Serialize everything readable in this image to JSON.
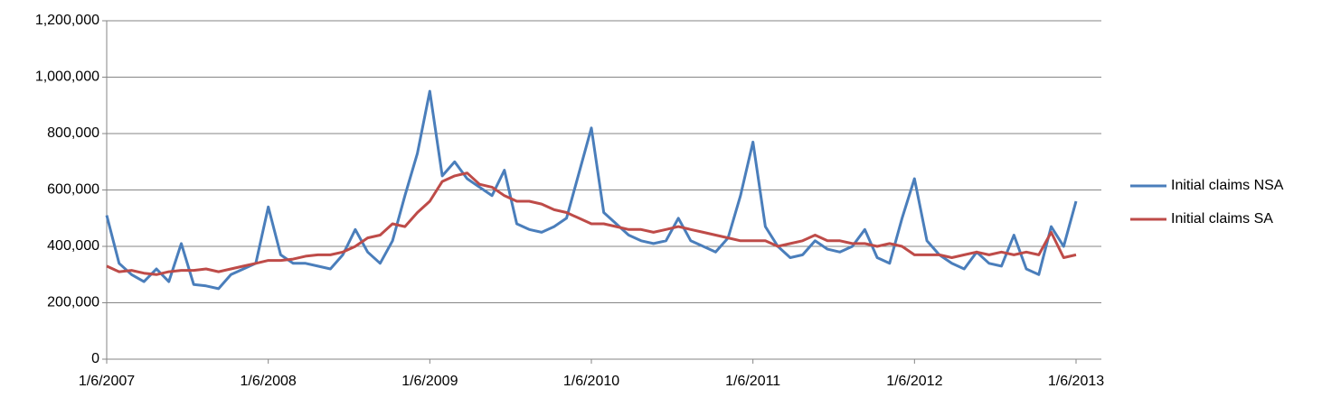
{
  "chart_data": {
    "type": "line",
    "categories": [
      "1/6/2007",
      null,
      null,
      null,
      null,
      null,
      null,
      null,
      null,
      null,
      null,
      null,
      null,
      "1/6/2008",
      null,
      null,
      null,
      null,
      null,
      null,
      null,
      null,
      null,
      null,
      null,
      null,
      "1/6/2009",
      null,
      null,
      null,
      null,
      null,
      null,
      null,
      null,
      null,
      null,
      null,
      null,
      "1/6/2010",
      null,
      null,
      null,
      null,
      null,
      null,
      null,
      null,
      null,
      null,
      null,
      null,
      "1/6/2011",
      null,
      null,
      null,
      null,
      null,
      null,
      null,
      null,
      null,
      null,
      null,
      null,
      "1/6/2012",
      null,
      null,
      null,
      null,
      null,
      null,
      null,
      null,
      null,
      null,
      null,
      null,
      "1/6/2013"
    ],
    "series": [
      {
        "name": "Initial claims NSA",
        "color": "#4a7ebb",
        "values": [
          510000,
          340000,
          300000,
          275000,
          320000,
          275000,
          410000,
          265000,
          260000,
          250000,
          300000,
          320000,
          340000,
          540000,
          370000,
          340000,
          340000,
          330000,
          320000,
          370000,
          460000,
          380000,
          340000,
          420000,
          580000,
          730000,
          950000,
          650000,
          700000,
          640000,
          610000,
          580000,
          670000,
          480000,
          460000,
          450000,
          470000,
          500000,
          660000,
          820000,
          520000,
          480000,
          440000,
          420000,
          410000,
          420000,
          500000,
          420000,
          400000,
          380000,
          430000,
          580000,
          770000,
          470000,
          400000,
          360000,
          370000,
          420000,
          390000,
          380000,
          400000,
          460000,
          360000,
          340000,
          500000,
          640000,
          420000,
          370000,
          340000,
          320000,
          380000,
          340000,
          330000,
          440000,
          320000,
          300000,
          470000,
          400000,
          560000
        ]
      },
      {
        "name": "Initial claims SA",
        "color": "#be4b48",
        "values": [
          330000,
          310000,
          315000,
          305000,
          300000,
          310000,
          315000,
          315000,
          320000,
          310000,
          320000,
          330000,
          340000,
          350000,
          350000,
          355000,
          365000,
          370000,
          370000,
          380000,
          400000,
          430000,
          440000,
          480000,
          470000,
          520000,
          560000,
          630000,
          650000,
          660000,
          620000,
          610000,
          580000,
          560000,
          560000,
          550000,
          530000,
          520000,
          500000,
          480000,
          480000,
          470000,
          460000,
          460000,
          450000,
          460000,
          470000,
          460000,
          450000,
          440000,
          430000,
          420000,
          420000,
          420000,
          400000,
          410000,
          420000,
          440000,
          420000,
          420000,
          410000,
          410000,
          400000,
          410000,
          400000,
          370000,
          370000,
          370000,
          360000,
          370000,
          380000,
          370000,
          380000,
          370000,
          380000,
          370000,
          450000,
          360000,
          370000
        ]
      }
    ],
    "ylim": [
      0,
      1200000
    ],
    "yticks": [
      0,
      {
        "value": 200000,
        "label": "200,000"
      },
      {
        "value": 400000,
        "label": "400,000"
      },
      {
        "value": 600000,
        "label": "600,000"
      },
      {
        "value": 800000,
        "label": "800,000"
      },
      {
        "value": 1000000,
        "label": "1,000,000"
      },
      {
        "value": 1200000,
        "label": "1,200,000"
      }
    ],
    "grid": true,
    "legend": "right"
  }
}
